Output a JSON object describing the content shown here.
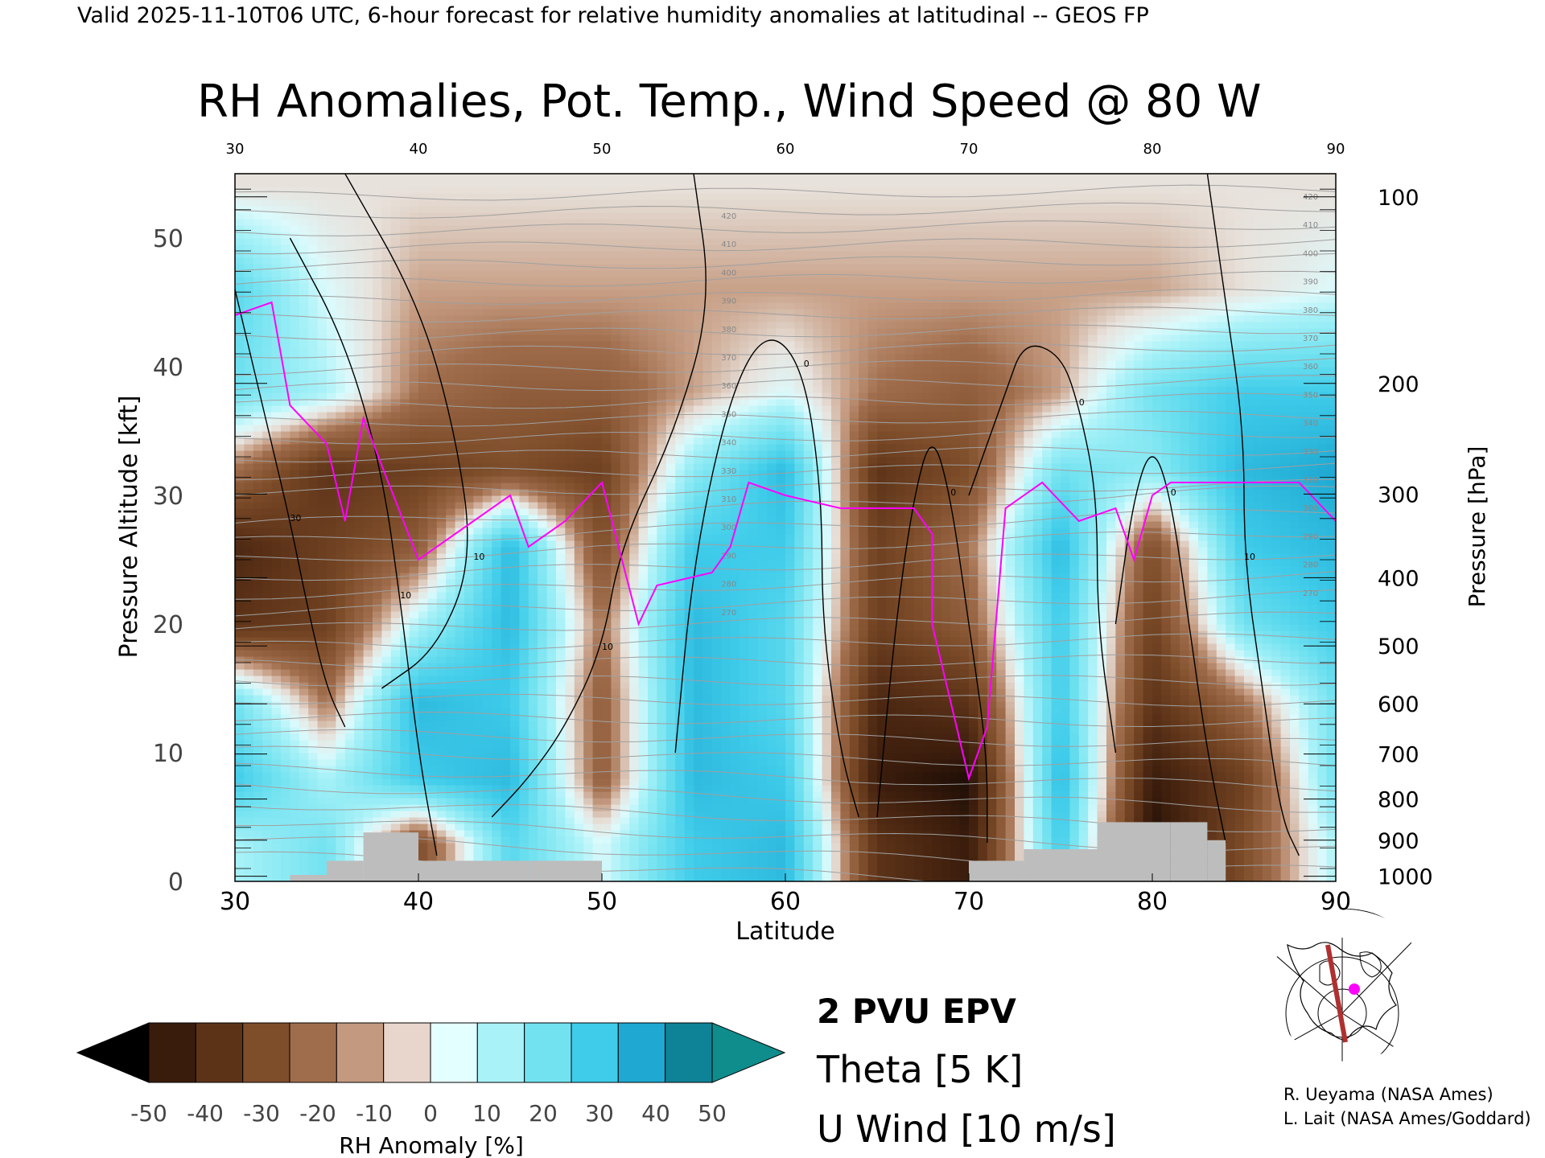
{
  "header": {
    "valid_line": "Valid 2025-11-10T06 UTC, 6-hour forecast for relative humidity anomalies at latitudinal -- GEOS FP"
  },
  "chart_data": {
    "type": "heatmap",
    "title": "RH Anomalies, Pot. Temp., Wind Speed @ 80 W",
    "xlabel": "Latitude",
    "ylabel_left": "Pressure Altitude [kft]",
    "ylabel_right": "Pressure [hPa]",
    "xlim": [
      30,
      90
    ],
    "ylim": [
      0,
      55
    ],
    "x_ticks": [
      "30",
      "40",
      "50",
      "60",
      "70",
      "80",
      "90"
    ],
    "y_ticks": [
      "0",
      "10",
      "20",
      "30",
      "40",
      "50"
    ],
    "y_tick_values": [
      0,
      10,
      20,
      30,
      40,
      50
    ],
    "pressure_ticks": [
      {
        "label": "100",
        "kft": 53.2
      },
      {
        "label": "200",
        "kft": 38.7
      },
      {
        "label": "300",
        "kft": 30.1
      },
      {
        "label": "400",
        "kft": 23.6
      },
      {
        "label": "500",
        "kft": 18.3
      },
      {
        "label": "600",
        "kft": 13.8
      },
      {
        "label": "700",
        "kft": 9.9
      },
      {
        "label": "800",
        "kft": 6.4
      },
      {
        "label": "900",
        "kft": 3.2
      },
      {
        "label": "1000",
        "kft": 0.4
      }
    ],
    "rh_anomaly_field": {
      "lats": [
        30,
        35,
        40,
        45,
        50,
        55,
        60,
        65,
        70,
        75,
        80,
        85,
        90
      ],
      "levels_kft": [
        3,
        8,
        14,
        20,
        26,
        32,
        38,
        46,
        54
      ],
      "values": [
        [
          10,
          20,
          -20,
          25,
          5,
          30,
          35,
          -30,
          -40,
          30,
          -45,
          -20,
          10
        ],
        [
          30,
          10,
          30,
          35,
          -15,
          35,
          30,
          -40,
          -45,
          35,
          -40,
          -25,
          20
        ],
        [
          20,
          -10,
          35,
          30,
          -15,
          35,
          25,
          -35,
          -30,
          30,
          -30,
          -10,
          20
        ],
        [
          -30,
          -25,
          10,
          35,
          -10,
          35,
          25,
          -25,
          -15,
          30,
          -25,
          20,
          30
        ],
        [
          -35,
          -25,
          -15,
          35,
          -20,
          30,
          30,
          -25,
          -10,
          35,
          -20,
          30,
          35
        ],
        [
          -10,
          -30,
          -25,
          -20,
          -25,
          15,
          35,
          -30,
          -20,
          20,
          15,
          35,
          40
        ],
        [
          20,
          10,
          -10,
          -15,
          -15,
          -5,
          5,
          -10,
          -15,
          -5,
          20,
          30,
          30
        ],
        [
          25,
          5,
          -5,
          -5,
          -5,
          -5,
          -5,
          -5,
          -5,
          -5,
          -5,
          0,
          5
        ],
        [
          0,
          0,
          0,
          0,
          0,
          0,
          0,
          0,
          0,
          0,
          0,
          0,
          0
        ]
      ]
    },
    "colorbar": {
      "label": "RH Anomaly [%]",
      "min": -50,
      "max": 50,
      "step": 10,
      "tick_labels": [
        "-50",
        "-40",
        "-30",
        "-20",
        "-10",
        "0",
        "10",
        "20",
        "30",
        "40",
        "50"
      ],
      "colors": [
        "#000000",
        "#3a1c0c",
        "#5d3318",
        "#7e4d2a",
        "#a06d4c",
        "#c39a80",
        "#e8d6cc",
        "#e4ffff",
        "#a8f2f8",
        "#72e2f0",
        "#3fccea",
        "#1ea8d2",
        "#0e8296",
        "#0f8c8c"
      ]
    },
    "surface_mask": [
      {
        "lat": [
          33,
          35
        ],
        "kft": 0.5
      },
      {
        "lat": [
          35,
          37
        ],
        "kft": 1.6
      },
      {
        "lat": [
          37,
          40
        ],
        "kft": 3.8
      },
      {
        "lat": [
          40,
          46
        ],
        "kft": 1.6
      },
      {
        "lat": [
          46,
          50
        ],
        "kft": 1.6
      },
      {
        "lat": [
          70,
          73
        ],
        "kft": 1.6
      },
      {
        "lat": [
          73,
          77
        ],
        "kft": 2.5
      },
      {
        "lat": [
          77,
          81
        ],
        "kft": 4.6
      },
      {
        "lat": [
          81,
          83
        ],
        "kft": 4.6
      },
      {
        "lat": [
          83,
          84
        ],
        "kft": 3.2
      }
    ],
    "epv_2pvu_line": [
      [
        30,
        44
      ],
      [
        32,
        45
      ],
      [
        33,
        37
      ],
      [
        35,
        34
      ],
      [
        36,
        28
      ],
      [
        37,
        36
      ],
      [
        40,
        25
      ],
      [
        43,
        28
      ],
      [
        45,
        30
      ],
      [
        46,
        26
      ],
      [
        48,
        28
      ],
      [
        50,
        31
      ],
      [
        52,
        20
      ],
      [
        53,
        23
      ],
      [
        56,
        24
      ],
      [
        57,
        26
      ],
      [
        58,
        31
      ],
      [
        60,
        30
      ],
      [
        63,
        29
      ],
      [
        66,
        29
      ],
      [
        67,
        29
      ],
      [
        68,
        27
      ],
      [
        68,
        20
      ],
      [
        69,
        14
      ],
      [
        70,
        8
      ],
      [
        71,
        12
      ],
      [
        72,
        29
      ],
      [
        74,
        31
      ],
      [
        76,
        28
      ],
      [
        78,
        29
      ],
      [
        79,
        25
      ],
      [
        80,
        30
      ],
      [
        81,
        31
      ],
      [
        83,
        31
      ],
      [
        85,
        31
      ],
      [
        88,
        31
      ],
      [
        90,
        28
      ]
    ],
    "wind_contours": [
      {
        "label": "10",
        "points": [
          [
            33,
            50
          ],
          [
            36,
            42
          ],
          [
            38,
            32
          ],
          [
            39,
            22
          ],
          [
            40,
            10
          ],
          [
            41,
            2
          ]
        ]
      },
      {
        "label": "30",
        "points": [
          [
            30,
            46
          ],
          [
            31,
            40
          ],
          [
            32,
            34
          ],
          [
            33,
            28
          ],
          [
            34,
            21
          ],
          [
            35,
            15
          ],
          [
            36,
            12
          ]
        ]
      },
      {
        "label": "10",
        "points": [
          [
            36,
            55
          ],
          [
            40,
            45
          ],
          [
            42,
            35
          ],
          [
            43,
            25
          ],
          [
            41,
            18
          ],
          [
            38,
            15
          ]
        ]
      },
      {
        "label": "10",
        "points": [
          [
            55,
            55
          ],
          [
            56,
            45
          ],
          [
            54,
            35
          ],
          [
            51,
            26
          ],
          [
            50,
            18
          ],
          [
            48,
            12
          ],
          [
            46,
            8
          ],
          [
            44,
            5
          ]
        ]
      },
      {
        "label": "0",
        "points": [
          [
            54,
            10
          ],
          [
            55,
            25
          ],
          [
            57,
            38
          ],
          [
            59,
            43
          ],
          [
            61,
            40
          ],
          [
            62,
            30
          ],
          [
            62,
            20
          ],
          [
            63,
            10
          ],
          [
            64,
            5
          ]
        ]
      },
      {
        "label": "0",
        "points": [
          [
            65,
            5
          ],
          [
            66,
            20
          ],
          [
            67,
            30
          ],
          [
            68,
            35
          ],
          [
            69,
            30
          ],
          [
            70,
            20
          ],
          [
            71,
            10
          ],
          [
            71,
            3
          ]
        ]
      },
      {
        "label": "0",
        "points": [
          [
            70,
            30
          ],
          [
            72,
            38
          ],
          [
            73,
            42
          ],
          [
            75,
            41
          ],
          [
            76,
            37
          ],
          [
            77,
            30
          ],
          [
            77,
            20
          ],
          [
            78,
            10
          ]
        ]
      },
      {
        "label": "10",
        "points": [
          [
            83,
            55
          ],
          [
            84,
            45
          ],
          [
            85,
            35
          ],
          [
            85,
            25
          ],
          [
            86,
            15
          ],
          [
            87,
            5
          ],
          [
            88,
            2
          ]
        ]
      },
      {
        "label": "0",
        "points": [
          [
            78,
            20
          ],
          [
            79,
            30
          ],
          [
            80,
            34
          ],
          [
            81,
            30
          ],
          [
            82,
            20
          ],
          [
            83,
            10
          ],
          [
            84,
            3
          ]
        ]
      }
    ],
    "theta_labels": [
      "420",
      "410",
      "400",
      "390",
      "380",
      "370",
      "360",
      "350",
      "340",
      "330",
      "310",
      "300",
      "290",
      "280",
      "270"
    ],
    "legend": {
      "epv": "2 PVU EPV",
      "theta": "Theta [5 K]",
      "uwind": "U Wind [10 m/s]"
    },
    "colors": {
      "epv": "#ff00ff",
      "theta": "#a0a0a0",
      "wind": "#000000",
      "surface": "#bdbdbd",
      "inset_track": "#b03030",
      "inset_dot": "#ff00ff"
    }
  },
  "credits": {
    "line1": "R. Ueyama (NASA Ames)",
    "line2": "L. Lait (NASA Ames/Goddard)"
  },
  "inset_map": {
    "icon": "globe-locator-map"
  }
}
